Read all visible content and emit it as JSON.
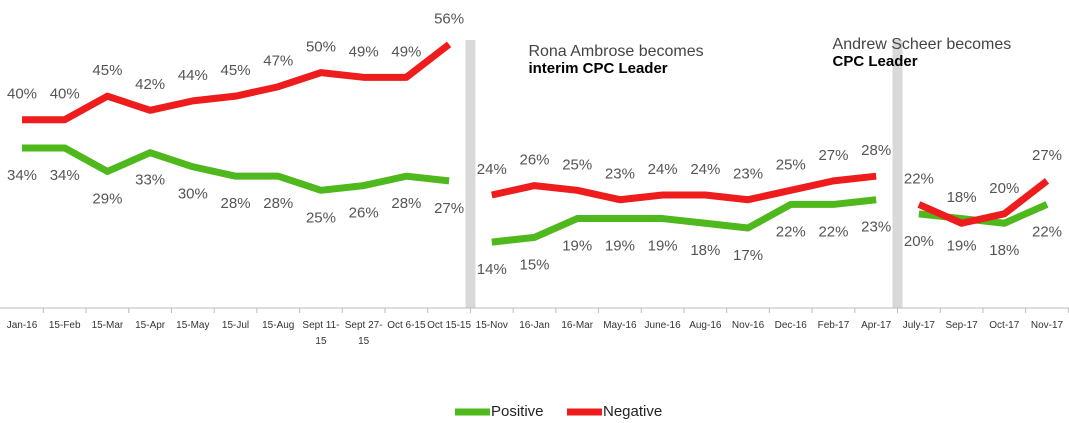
{
  "chart_data": {
    "type": "line",
    "categories": [
      "Jan-16",
      "15-Feb",
      "15-Mar",
      "15-Apr",
      "15-May",
      "15-Jul",
      "15-Aug",
      "Sept 11-15",
      "Sept 27-15",
      "Oct 6-15",
      "Oct 15-15",
      "15-Nov",
      "16-Jan",
      "16-Mar",
      "May-16",
      "June-16",
      "Aug-16",
      "Nov-16",
      "Dec-16",
      "Feb-17",
      "Apr-17",
      "July-17",
      "Sep-17",
      "Oct-17",
      "Nov-17"
    ],
    "series": [
      {
        "name": "Positive",
        "color": "#4fb81c",
        "values": [
          34,
          34,
          29,
          33,
          30,
          28,
          28,
          25,
          26,
          28,
          27,
          14,
          15,
          19,
          19,
          19,
          18,
          17,
          22,
          22,
          23,
          20,
          19,
          18,
          22
        ],
        "value_labels": [
          "34%",
          "34%",
          "29%",
          "33%",
          "30%",
          "28%",
          "28%",
          "25%",
          "26%",
          "28%",
          "27%",
          "14%",
          "15%",
          "19%",
          "19%",
          "19%",
          "18%",
          "17%",
          "22%",
          "22%",
          "23%",
          "20%",
          "19%",
          "18%",
          "22%"
        ]
      },
      {
        "name": "Negative",
        "color": "#ee1c1c",
        "values": [
          40,
          40,
          45,
          42,
          44,
          45,
          47,
          50,
          49,
          49,
          56,
          24,
          26,
          25,
          23,
          24,
          24,
          23,
          25,
          27,
          28,
          22,
          18,
          20,
          27
        ],
        "value_labels": [
          "40%",
          "40%",
          "45%",
          "42%",
          "44%",
          "45%",
          "47%",
          "50%",
          "49%",
          "49%",
          "56%",
          "24%",
          "26%",
          "25%",
          "23%",
          "24%",
          "24%",
          "23%",
          "25%",
          "27%",
          "28%",
          "22%",
          "18%",
          "20%",
          "27%"
        ]
      }
    ],
    "ylim": [
      0,
      65
    ],
    "separators": [
      {
        "after_index": 10,
        "text": "Rona Ambrose becomes",
        "bold_text": "interim CPC Leader"
      },
      {
        "after_index": 20,
        "text": "Andrew Scheer becomes",
        "bold_text": "CPC Leader"
      }
    ],
    "legend": "bottom"
  }
}
